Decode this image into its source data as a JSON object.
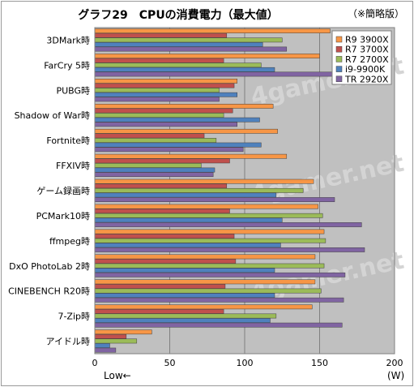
{
  "header": {
    "title": "グラフ29　CPUの消費電力（最大値）",
    "note": "（※簡略版）"
  },
  "chart_data": {
    "type": "bar",
    "orientation": "horizontal",
    "categories": [
      "3DMark時",
      "FarCry 5時",
      "PUBG時",
      "Shadow of War時",
      "Fortnite時",
      "FFXIV時",
      "ゲーム録画時",
      "PCMark10時",
      "ffmpeg時",
      "DxO PhotoLab 2時",
      "CINEBENCH R20時",
      "7-Zip時",
      "アイドル時"
    ],
    "series": [
      {
        "name": "R9 3900X",
        "color": "#f79646",
        "values": [
          157,
          150,
          95,
          119,
          122,
          128,
          146,
          149,
          153,
          147,
          147,
          145,
          38
        ]
      },
      {
        "name": "R7 3700X",
        "color": "#c0504d",
        "values": [
          88,
          86,
          93,
          92,
          73,
          90,
          88,
          90,
          93,
          94,
          87,
          86,
          21
        ]
      },
      {
        "name": "R7 2700X",
        "color": "#9bbb59",
        "values": [
          125,
          111,
          83,
          86,
          81,
          71,
          139,
          152,
          154,
          153,
          151,
          121,
          28
        ]
      },
      {
        "name": "i9-9900K",
        "color": "#4f81bd",
        "values": [
          112,
          120,
          95,
          110,
          111,
          80,
          121,
          125,
          124,
          120,
          120,
          117,
          10
        ]
      },
      {
        "name": "TR 2920X",
        "color": "#8064a2",
        "values": [
          128,
          160,
          83,
          95,
          99,
          79,
          160,
          178,
          180,
          167,
          166,
          165,
          14
        ]
      }
    ],
    "xlim": [
      0,
      200
    ],
    "xticks": [
      0,
      50,
      100,
      150,
      200
    ],
    "xunit": "(W)",
    "xnote": "Low←",
    "grid": true,
    "legend": "top-right",
    "watermark": "4gamer.net"
  }
}
